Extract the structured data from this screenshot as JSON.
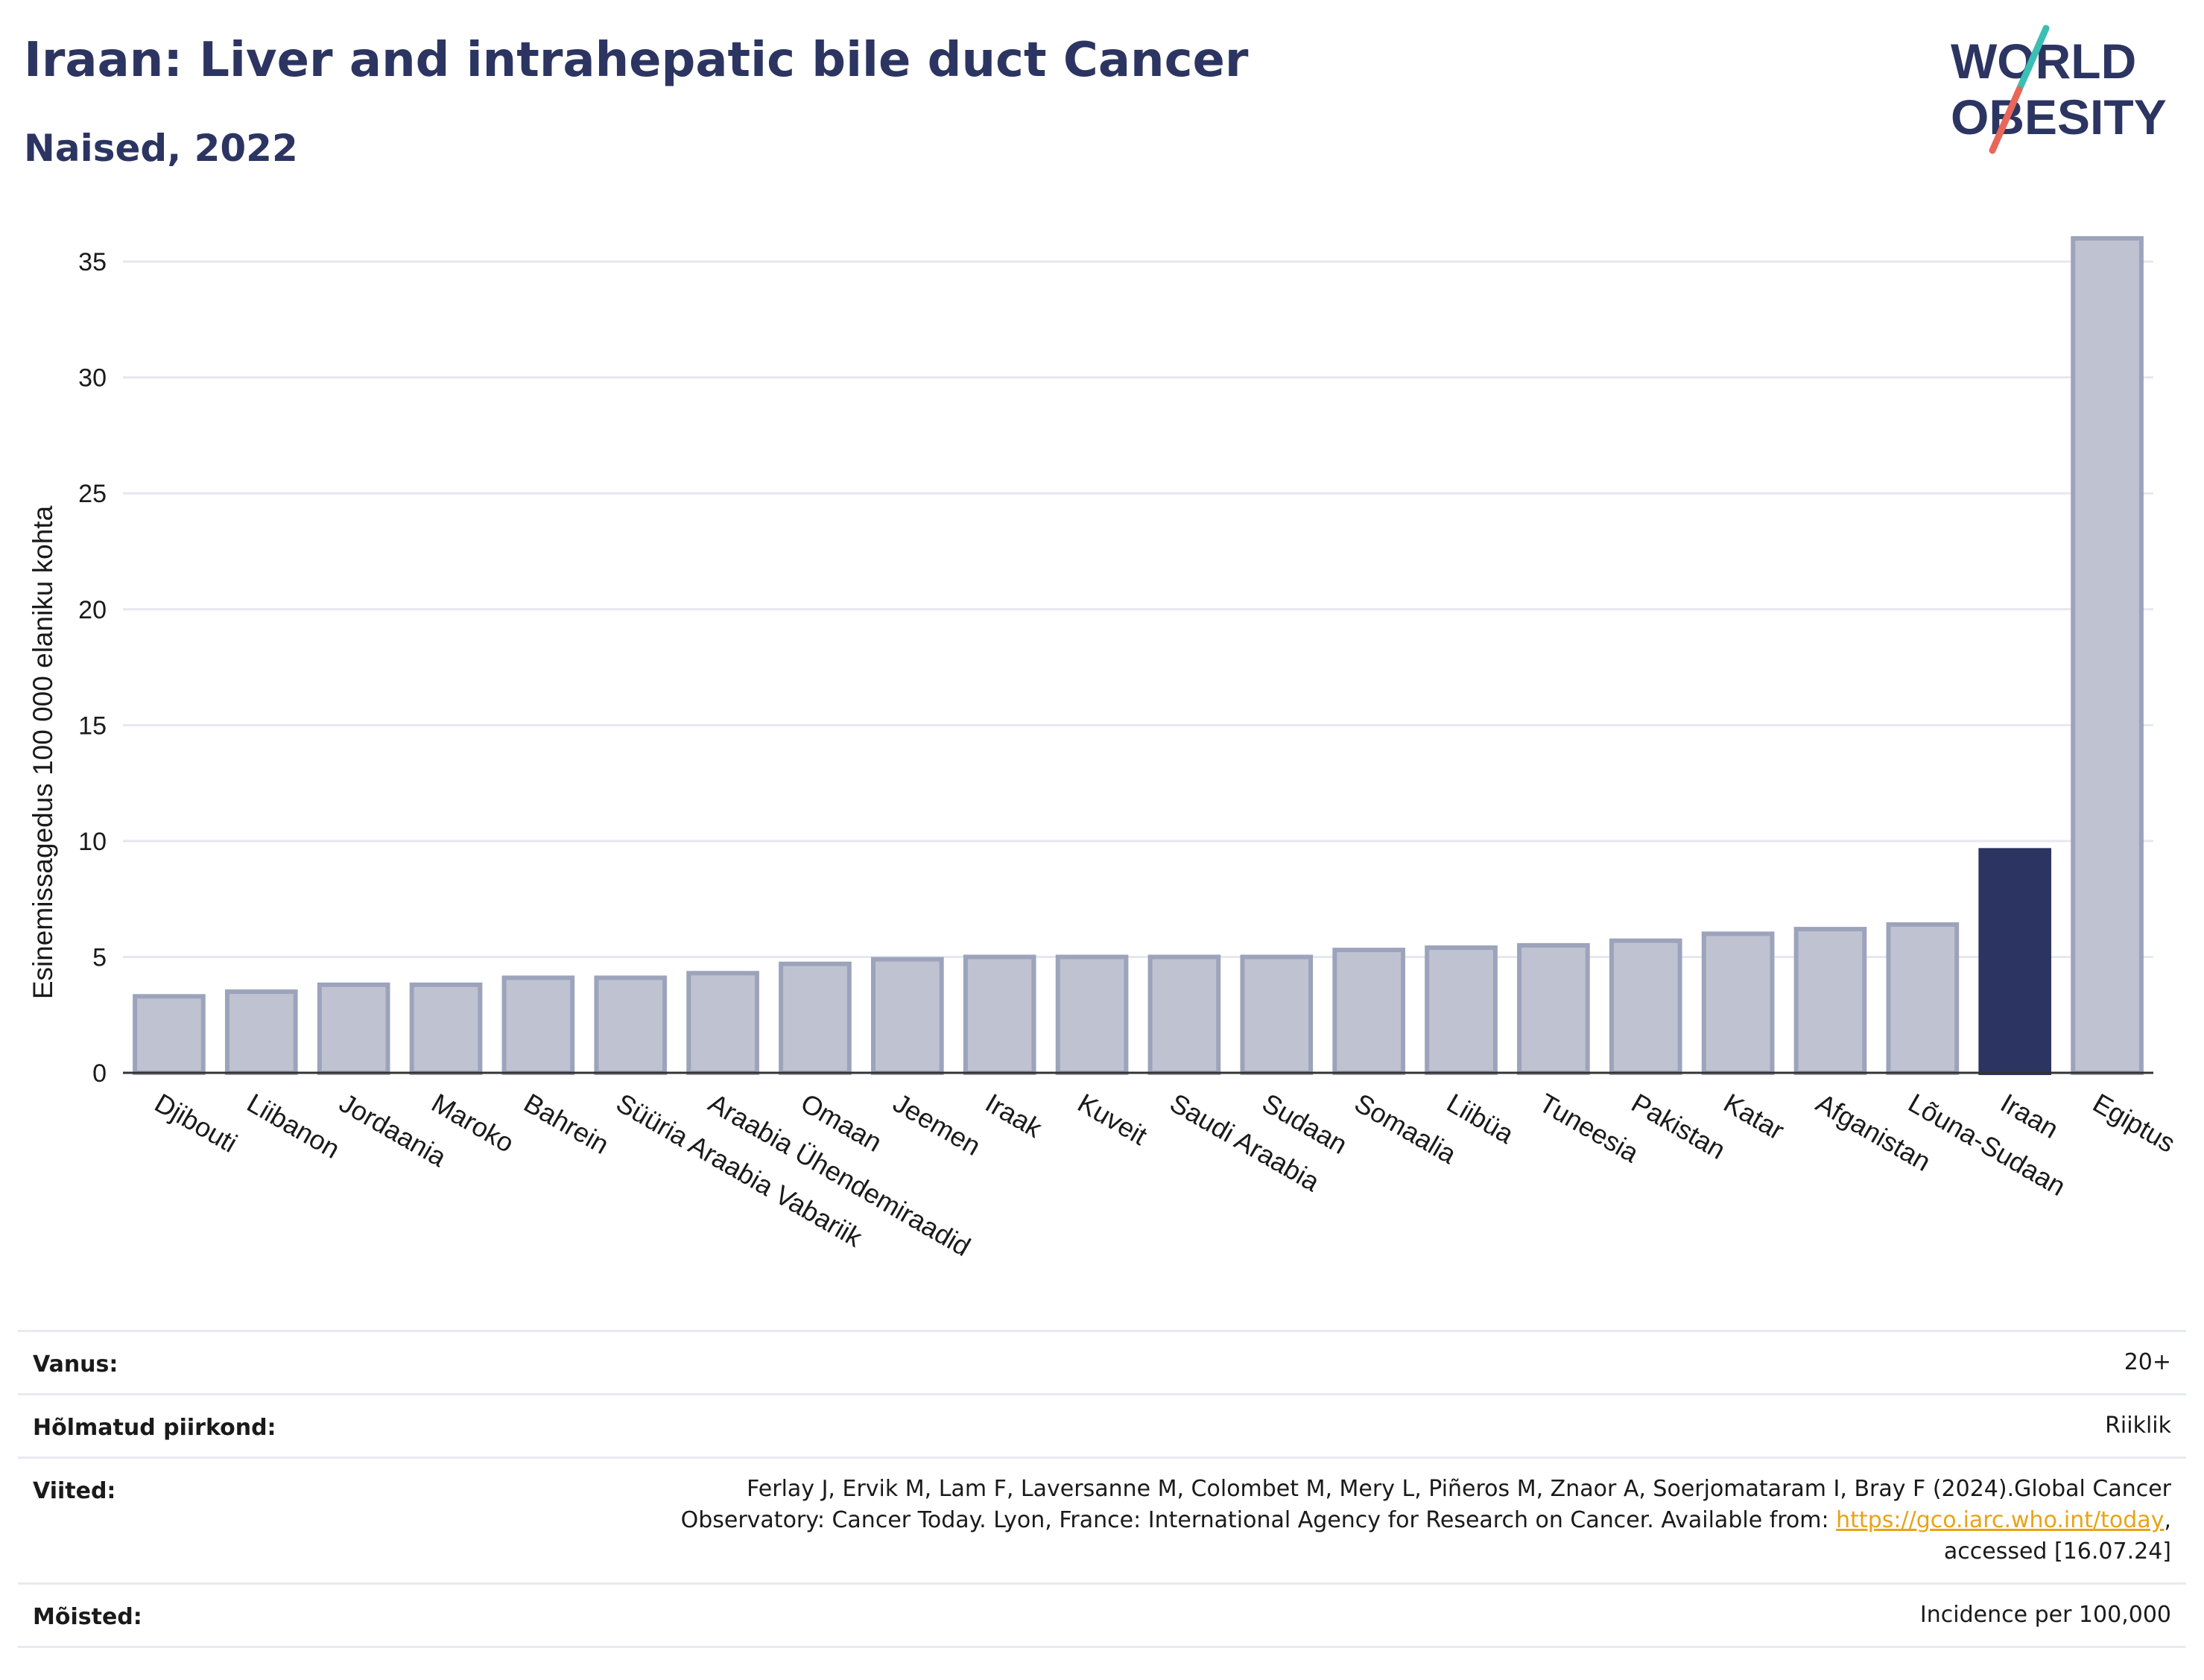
{
  "header": {
    "title": "Iraan: Liver and intrahepatic bile duct Cancer",
    "subtitle": "Naised, 2022"
  },
  "logo": {
    "line1": "WORLD",
    "line2": "OBESITY",
    "colors": {
      "text": "#2c3561",
      "slash_top": "#3bbfb3",
      "slash_bottom": "#e8675a"
    }
  },
  "colors": {
    "bar_default": "#bfc3d1",
    "bar_border": "#9ca3bb",
    "bar_highlight": "#2c3561",
    "grid": "#e6e8ef",
    "title": "#2c3561"
  },
  "chart_data": {
    "type": "bar",
    "title": "Iraan: Liver and intrahepatic bile duct Cancer",
    "subtitle": "Naised, 2022",
    "ylabel": "Esinemissagedus 100 000 elaniku kohta",
    "xlabel": "",
    "ylim": [
      0,
      36
    ],
    "yticks": [
      0,
      5,
      10,
      15,
      20,
      25,
      30,
      35
    ],
    "grid": true,
    "highlight": "Iraan",
    "categories": [
      "Djibouti",
      "Liibanon",
      "Jordaania",
      "Maroko",
      "Bahrein",
      "Süüria Araabia Vabariik",
      "Araabia Ühendemiraadid",
      "Omaan",
      "Jeemen",
      "Iraak",
      "Kuveit",
      "Saudi Araabia",
      "Sudaan",
      "Somaalia",
      "Liibüa",
      "Tuneesia",
      "Pakistan",
      "Katar",
      "Afganistan",
      "Lõuna-Sudaan",
      "Iraan",
      "Egiptus"
    ],
    "values": [
      3.3,
      3.5,
      3.8,
      3.8,
      4.1,
      4.1,
      4.3,
      4.7,
      4.9,
      5.0,
      5.0,
      5.0,
      5.0,
      5.3,
      5.4,
      5.5,
      5.7,
      6.0,
      6.2,
      6.4,
      9.6,
      36.0
    ]
  },
  "info": [
    {
      "label": "Vanus:",
      "value": "20+"
    },
    {
      "label": "Hõlmatud piirkond:",
      "value": "Riiklik"
    },
    {
      "label": "Viited:",
      "value_before": "Ferlay J, Ervik M, Lam F, Laversanne M, Colombet M, Mery L, Piñeros M, Znaor A, Soerjomataram I, Bray F (2024).Global Cancer Observatory: Cancer Today. Lyon, France: International Agency for Research on Cancer. Available from: ",
      "link": "https://gco.iarc.who.int/today",
      "value_after": ", accessed [16.07.24]"
    },
    {
      "label": "Mõisted:",
      "value": "Incidence per 100,000"
    }
  ]
}
